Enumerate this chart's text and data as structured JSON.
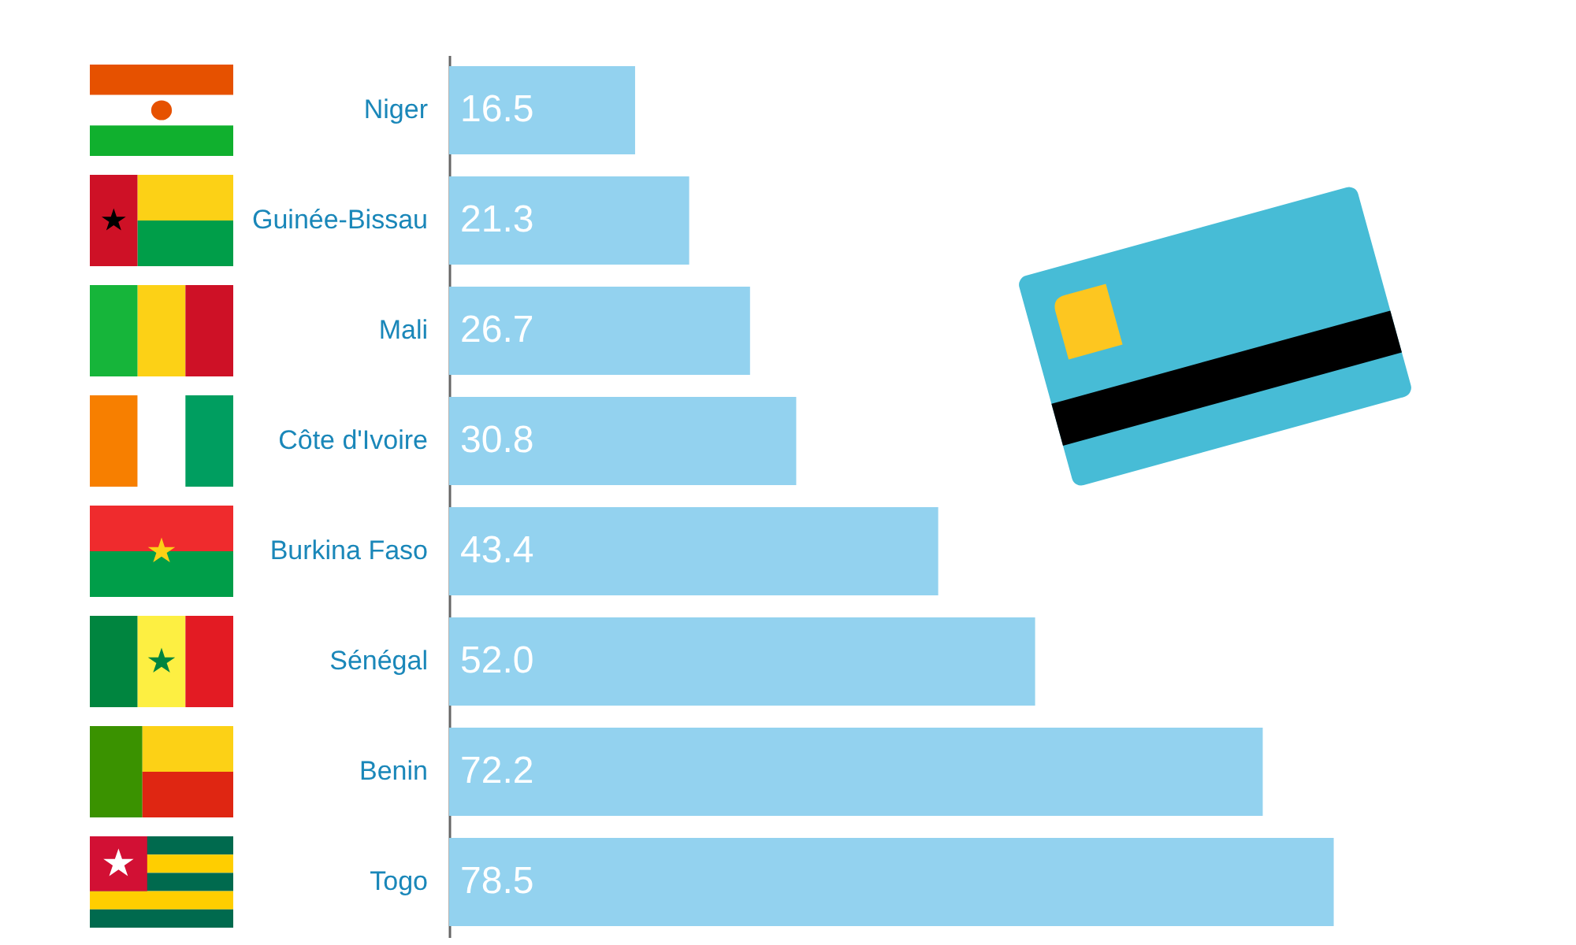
{
  "chart_data": {
    "type": "bar",
    "orientation": "horizontal",
    "categories": [
      "Niger",
      "Guinée-Bissau",
      "Mali",
      "Côte d'Ivoire",
      "Burkina Faso",
      "Sénégal",
      "Benin",
      "Togo"
    ],
    "values": [
      16.5,
      21.3,
      26.7,
      30.8,
      43.4,
      52.0,
      72.2,
      78.5
    ],
    "value_labels": [
      "16.5",
      "21.3",
      "26.7",
      "30.8",
      "43.4",
      "52.0",
      "72.2",
      "78.5"
    ],
    "color": "#93d2ef",
    "xlim": [
      0,
      100
    ],
    "tick_labels": "y"
  }
}
